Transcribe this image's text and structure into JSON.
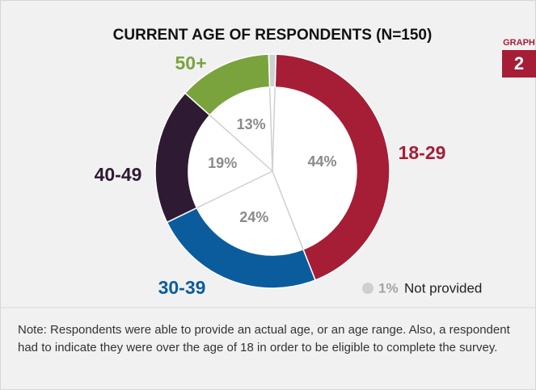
{
  "chart_data": {
    "type": "donut",
    "title": "CURRENT AGE OF RESPONDENTS (N=150)",
    "categories": [
      "18-29",
      "30-39",
      "40-49",
      "50+",
      "Not provided"
    ],
    "values": [
      44,
      24,
      19,
      13,
      1
    ],
    "value_labels": [
      "44%",
      "24%",
      "19%",
      "13%",
      "1%"
    ],
    "colors": [
      "#a51e36",
      "#0b5c9d",
      "#2e1b33",
      "#7aa33e",
      "#cfcfcf"
    ]
  },
  "badge": {
    "label": "GRAPH",
    "number": "2"
  },
  "note": "Note: Respondents were able to provide an actual age, or an age range. Also, a respondent had to indicate they were over the age of 18 in order to be eligible to complete the survey."
}
